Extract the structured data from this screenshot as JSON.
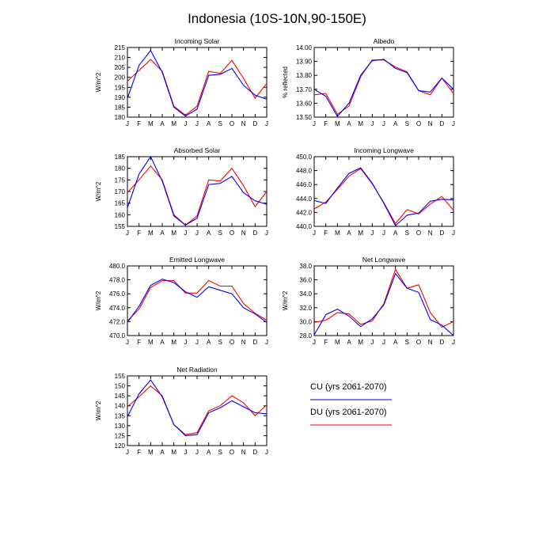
{
  "title": "Indonesia (10S-10N,90-150E)",
  "legend": {
    "placement": "bottom-right",
    "items": [
      {
        "label": "CU (yrs 2061-2070)",
        "color": "#0000ff"
      },
      {
        "label": "DU (yrs 2061-2070)",
        "color": "#ff0000"
      }
    ]
  },
  "chart_data": [
    {
      "type": "line",
      "title": "Incoming Solar",
      "ylabel": "W/m^2",
      "categories": [
        "J",
        "F",
        "M",
        "A",
        "M",
        "J",
        "J",
        "A",
        "S",
        "O",
        "N",
        "D",
        "J"
      ],
      "ylim": [
        180,
        215
      ],
      "yticks": [
        180,
        185,
        190,
        195,
        200,
        205,
        210,
        215
      ],
      "ytick_labels": [
        "180",
        "185",
        "190",
        "195",
        "200",
        "205",
        "210",
        "215"
      ],
      "series": [
        {
          "color": "#0000ff",
          "values": [
            189.5,
            206,
            213.5,
            202.5,
            185,
            180.5,
            184,
            201,
            201.5,
            204.5,
            196,
            191,
            189
          ]
        },
        {
          "color": "#ff0000",
          "values": [
            198,
            203.5,
            209,
            203,
            185.5,
            181,
            185.5,
            203,
            202,
            208.5,
            199.5,
            189.5,
            197
          ]
        }
      ]
    },
    {
      "type": "line",
      "title": "Albedo",
      "ylabel": "% reflected",
      "categories": [
        "J",
        "F",
        "M",
        "A",
        "M",
        "J",
        "J",
        "A",
        "S",
        "O",
        "N",
        "D",
        "J"
      ],
      "ylim": [
        13.5,
        14.0
      ],
      "yticks": [
        13.5,
        13.6,
        13.7,
        13.8,
        13.9,
        14.0
      ],
      "ytick_labels": [
        "13.50",
        "13.60",
        "13.70",
        "13.80",
        "13.90",
        "14.00"
      ],
      "series": [
        {
          "color": "#0000ff",
          "values": [
            13.7,
            13.65,
            13.505,
            13.6,
            13.8,
            13.905,
            13.915,
            13.85,
            13.82,
            13.69,
            13.68,
            13.78,
            13.7
          ]
        },
        {
          "color": "#ff0000",
          "values": [
            13.66,
            13.67,
            13.52,
            13.58,
            13.79,
            13.91,
            13.91,
            13.86,
            13.825,
            13.69,
            13.66,
            13.78,
            13.67
          ]
        }
      ]
    },
    {
      "type": "line",
      "title": "Absorbed Solar",
      "ylabel": "W/m^2",
      "categories": [
        "J",
        "F",
        "M",
        "A",
        "M",
        "J",
        "J",
        "A",
        "S",
        "O",
        "N",
        "D",
        "J"
      ],
      "ylim": [
        155,
        185
      ],
      "yticks": [
        155,
        160,
        165,
        170,
        175,
        180,
        185
      ],
      "ytick_labels": [
        "155",
        "160",
        "165",
        "170",
        "175",
        "180",
        "185"
      ],
      "series": [
        {
          "color": "#0000ff",
          "values": [
            163,
            177.5,
            185,
            174.5,
            159.5,
            155.5,
            158.5,
            173,
            173.5,
            176.5,
            169.5,
            166,
            164.5
          ]
        },
        {
          "color": "#ff0000",
          "values": [
            169.5,
            175,
            181,
            175,
            160,
            155.5,
            159.5,
            175,
            174.5,
            180,
            172.5,
            163.5,
            170
          ]
        }
      ]
    },
    {
      "type": "line",
      "title": "Incoming Longwave",
      "ylabel": "",
      "categories": [
        "J",
        "F",
        "M",
        "A",
        "M",
        "J",
        "J",
        "A",
        "S",
        "O",
        "N",
        "D",
        "J"
      ],
      "ylim": [
        440,
        450
      ],
      "yticks": [
        440,
        442,
        444,
        446,
        448,
        450
      ],
      "ytick_labels": [
        "440.0",
        "442.0",
        "444.0",
        "446.0",
        "448.0",
        "450.0"
      ],
      "series": [
        {
          "color": "#0000ff",
          "values": [
            443.7,
            443.3,
            445.5,
            447.6,
            448.4,
            446.2,
            443.3,
            440.1,
            441.6,
            441.9,
            443.6,
            443.9,
            443.8
          ]
        },
        {
          "color": "#ff0000",
          "values": [
            442.5,
            443.5,
            445.3,
            447.2,
            448.3,
            446.1,
            443.4,
            440.4,
            442.4,
            441.8,
            443.2,
            444.3,
            442.3
          ]
        }
      ]
    },
    {
      "type": "line",
      "title": "Emitted Longwave",
      "ylabel": "W/m^2",
      "categories": [
        "J",
        "F",
        "M",
        "A",
        "M",
        "J",
        "J",
        "A",
        "S",
        "O",
        "N",
        "D",
        "J"
      ],
      "ylim": [
        470,
        480
      ],
      "yticks": [
        470,
        472,
        474,
        476,
        478,
        480
      ],
      "ytick_labels": [
        "470.0",
        "472.0",
        "474.0",
        "476.0",
        "478.0",
        "480.0"
      ],
      "series": [
        {
          "color": "#0000ff",
          "values": [
            471.9,
            474.2,
            477.2,
            478.1,
            477.6,
            476.3,
            475.5,
            477.0,
            476.5,
            476.0,
            474.0,
            473.1,
            471.9
          ]
        },
        {
          "color": "#ff0000",
          "values": [
            472.1,
            473.8,
            476.9,
            477.9,
            477.9,
            476.1,
            476.1,
            477.9,
            477.1,
            477.1,
            474.6,
            473.2,
            472.2
          ]
        }
      ]
    },
    {
      "type": "line",
      "title": "Net Longwave",
      "ylabel": "W/m^2",
      "categories": [
        "J",
        "F",
        "M",
        "A",
        "M",
        "J",
        "J",
        "A",
        "S",
        "O",
        "N",
        "D",
        "J"
      ],
      "ylim": [
        28,
        38
      ],
      "yticks": [
        28,
        30,
        32,
        34,
        36,
        38
      ],
      "ytick_labels": [
        "28.0",
        "30.0",
        "32.0",
        "34.0",
        "36.0",
        "38.0"
      ],
      "series": [
        {
          "color": "#0000ff",
          "values": [
            28.1,
            31.0,
            31.8,
            30.8,
            29.3,
            30.4,
            32.4,
            36.9,
            34.8,
            34.2,
            30.3,
            29.5,
            28.0
          ]
        },
        {
          "color": "#ff0000",
          "values": [
            29.9,
            30.2,
            31.3,
            31.1,
            29.6,
            30.1,
            32.6,
            37.5,
            34.8,
            35.3,
            31.3,
            29.2,
            30.0
          ]
        }
      ]
    },
    {
      "type": "line",
      "title": "Net Radiation",
      "ylabel": "W/m^2",
      "categories": [
        "J",
        "F",
        "M",
        "A",
        "M",
        "J",
        "J",
        "A",
        "S",
        "O",
        "N",
        "D",
        "J"
      ],
      "ylim": [
        120,
        155
      ],
      "yticks": [
        120,
        125,
        130,
        135,
        140,
        145,
        150,
        155
      ],
      "ytick_labels": [
        "120",
        "125",
        "130",
        "135",
        "140",
        "145",
        "150",
        "155"
      ],
      "series": [
        {
          "color": "#0000ff",
          "values": [
            134.5,
            146,
            153,
            144.5,
            130.5,
            125,
            125.5,
            136.5,
            139,
            142.5,
            139.5,
            136.5,
            136
          ]
        },
        {
          "color": "#ff0000",
          "values": [
            139.5,
            144.5,
            150,
            145,
            130.5,
            125.5,
            126.5,
            137.5,
            140,
            145,
            141.5,
            135,
            140.5
          ]
        }
      ]
    }
  ]
}
